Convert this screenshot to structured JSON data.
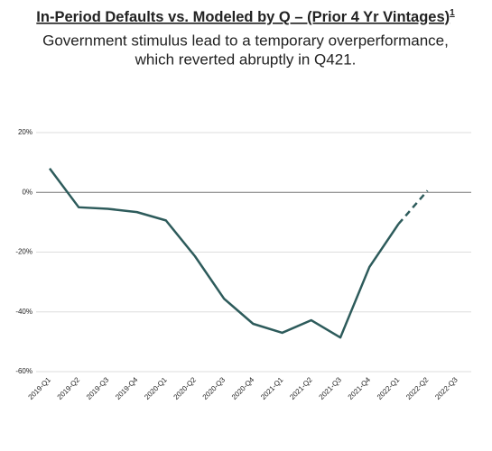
{
  "chart_data": {
    "type": "line",
    "title": "In-Period Defaults vs. Modeled by Q – (Prior 4 Yr Vintages)",
    "title_note": "1",
    "subtitle": [
      "Government stimulus lead to a temporary overperformance,",
      "which reverted abruptly in Q421."
    ],
    "categories": [
      "2019-Q1",
      "2019-Q2",
      "2019-Q3",
      "2019-Q4",
      "2020-Q1",
      "2020-Q2",
      "2020-Q3",
      "2020-Q4",
      "2021-Q1",
      "2021-Q2",
      "2021-Q3",
      "2021-Q4",
      "2022-Q1",
      "2022-Q2",
      "2022-Q3"
    ],
    "series": [
      {
        "color": "#2d5b5b",
        "dashed": false,
        "values": [
          8,
          -5,
          -5.5,
          -6.6,
          -9.4,
          -21.4,
          -35.6,
          -44,
          -47,
          -42.8,
          -48.6,
          -25,
          -10.6,
          null,
          null
        ]
      },
      {
        "color": "#2d5b5b",
        "dashed": true,
        "values": [
          null,
          null,
          null,
          null,
          null,
          null,
          null,
          null,
          null,
          null,
          null,
          null,
          -10.6,
          0.6,
          null
        ]
      }
    ],
    "ylim": [
      -60,
      20
    ],
    "yticks": [
      {
        "value": 20,
        "label": "20%"
      },
      {
        "value": 0,
        "label": "0%"
      },
      {
        "value": -20,
        "label": "-20%"
      },
      {
        "value": -40,
        "label": "-40%"
      },
      {
        "value": -60,
        "label": "-60%"
      }
    ],
    "grid": true
  }
}
